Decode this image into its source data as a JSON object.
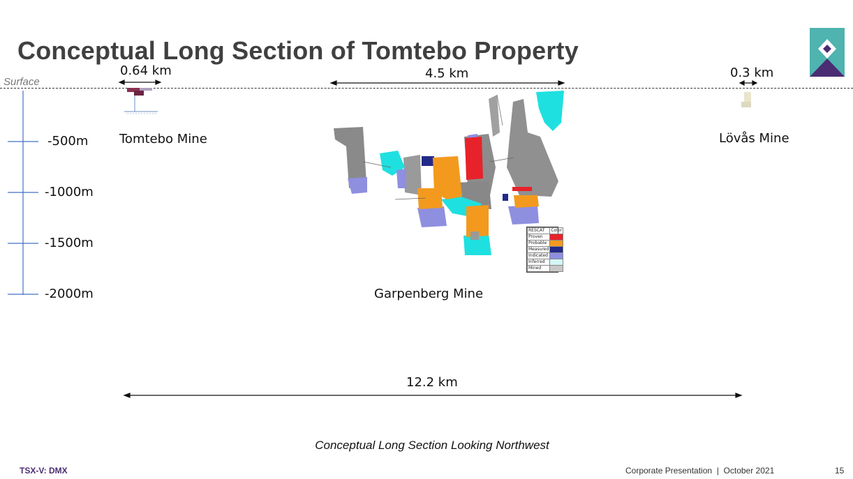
{
  "slide": {
    "title": "Conceptual Long Section of Tomtebo Property",
    "surface_label": "Surface",
    "caption": "Conceptual Long Section Looking Northwest",
    "footer": {
      "ticker": "TSX-V: DMX",
      "presentation": "Corporate Presentation  |  October 2021",
      "page": "15"
    }
  },
  "depth_scale": {
    "labels": [
      "-500m",
      "-1000m",
      "-1500m",
      "-2000m"
    ]
  },
  "mines": {
    "tomtebo": {
      "label": "Tomtebo Mine",
      "width": "0.64 km"
    },
    "garpenberg": {
      "label": "Garpenberg Mine",
      "width": "4.5 km"
    },
    "lovas": {
      "label": "Lövås Mine",
      "width": "0.3 km"
    }
  },
  "total_distance": "12.2 km",
  "legend": {
    "header": [
      "RESCAT",
      "Color"
    ],
    "items": [
      {
        "label": "Proven",
        "color": "#e8222a"
      },
      {
        "label": "Probable",
        "color": "#f39a1e"
      },
      {
        "label": "Measured",
        "color": "#232a8a"
      },
      {
        "label": "Indicated",
        "color": "#8f8fe0"
      },
      {
        "label": "Inferred",
        "color": "#d4f6f6"
      },
      {
        "label": "Mined",
        "color": "#c8c8c8"
      }
    ]
  },
  "colors": {
    "title": "#404040",
    "brand": "#4b2d73",
    "logo_teal": "#4fb3b0",
    "axis": "#4472c4",
    "cyan": "#1fe0e0",
    "grey_workings": "#8a8a8a"
  }
}
